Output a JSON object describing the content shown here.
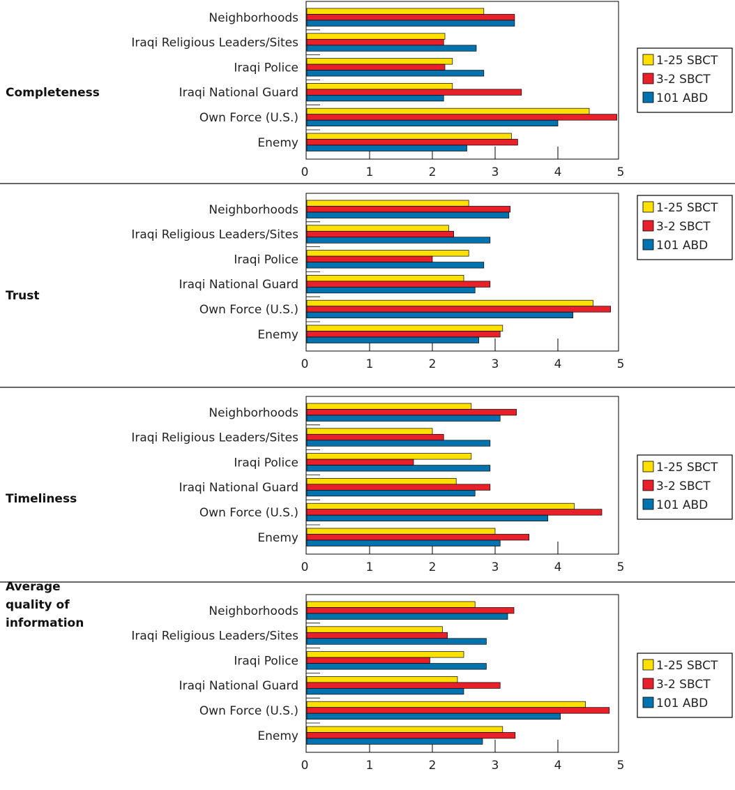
{
  "colors": {
    "series": [
      "#FFE000",
      "#E8202A",
      "#0072AE"
    ],
    "border": "#000000",
    "separator": "#333333"
  },
  "legend": [
    "1-25 SBCT",
    "3-2 SBCT",
    "101 ABD"
  ],
  "chart_data": [
    {
      "type": "bar",
      "orientation": "horizontal",
      "title": "Completeness",
      "categories": [
        "Neighborhoods",
        "Iraqi Religious Leaders/Sites",
        "Iraqi Police",
        "Iraqi National Guard",
        "Own Force (U.S.)",
        "Enemy"
      ],
      "series": [
        {
          "name": "1-25 SBCT",
          "values": [
            2.82,
            2.2,
            2.32,
            2.32,
            4.5,
            3.26
          ]
        },
        {
          "name": "3-2 SBCT",
          "values": [
            3.31,
            2.18,
            2.2,
            3.42,
            4.94,
            3.36
          ]
        },
        {
          "name": "101 ABD",
          "values": [
            3.31,
            2.7,
            2.82,
            2.18,
            4.0,
            2.55
          ]
        }
      ],
      "xlim": [
        0,
        5
      ],
      "xticks": [
        0,
        1,
        2,
        3,
        4,
        5
      ],
      "legend_position": "right"
    },
    {
      "type": "bar",
      "orientation": "horizontal",
      "title": "Trust",
      "categories": [
        "Neighborhoods",
        "Iraqi Religious Leaders/Sites",
        "Iraqi Police",
        "Iraqi National Guard",
        "Own Force (U.S.)",
        "Enemy"
      ],
      "series": [
        {
          "name": "1-25 SBCT",
          "values": [
            2.58,
            2.26,
            2.58,
            2.5,
            4.56,
            3.12
          ]
        },
        {
          "name": "3-2 SBCT",
          "values": [
            3.24,
            2.34,
            2.0,
            2.92,
            4.84,
            3.08
          ]
        },
        {
          "name": "101 ABD",
          "values": [
            3.22,
            2.92,
            2.82,
            2.68,
            4.24,
            2.74
          ]
        }
      ],
      "xlim": [
        0,
        5
      ],
      "xticks": [
        0,
        1,
        2,
        3,
        4,
        5
      ],
      "legend_position": "right"
    },
    {
      "type": "bar",
      "orientation": "horizontal",
      "title": "Timeliness",
      "categories": [
        "Neighborhoods",
        "Iraqi Religious Leaders/Sites",
        "Iraqi Police",
        "Iraqi National Guard",
        "Own Force (U.S.)",
        "Enemy"
      ],
      "series": [
        {
          "name": "1-25 SBCT",
          "values": [
            2.62,
            2.0,
            2.62,
            2.38,
            4.26,
            3.0
          ]
        },
        {
          "name": "3-2 SBCT",
          "values": [
            3.34,
            2.18,
            1.7,
            2.92,
            4.7,
            3.54
          ]
        },
        {
          "name": "101 ABD",
          "values": [
            3.08,
            2.92,
            2.92,
            2.68,
            3.84,
            3.08
          ]
        }
      ],
      "xlim": [
        0,
        5
      ],
      "xticks": [
        0,
        1,
        2,
        3,
        4,
        5
      ],
      "legend_position": "right"
    },
    {
      "type": "bar",
      "orientation": "horizontal",
      "title": "Average quality of information",
      "categories": [
        "Neighborhoods",
        "Iraqi Religious Leaders/Sites",
        "Iraqi Police",
        "Iraqi National Guard",
        "Own Force (U.S.)",
        "Enemy"
      ],
      "series": [
        {
          "name": "1-25 SBCT",
          "values": [
            2.68,
            2.16,
            2.5,
            2.4,
            4.44,
            3.12
          ]
        },
        {
          "name": "3-2 SBCT",
          "values": [
            3.3,
            2.24,
            1.96,
            3.08,
            4.82,
            3.32
          ]
        },
        {
          "name": "101 ABD",
          "values": [
            3.2,
            2.86,
            2.86,
            2.5,
            4.04,
            2.8
          ]
        }
      ],
      "xlim": [
        0,
        5
      ],
      "xticks": [
        0,
        1,
        2,
        3,
        4,
        5
      ],
      "legend_position": "right"
    }
  ]
}
